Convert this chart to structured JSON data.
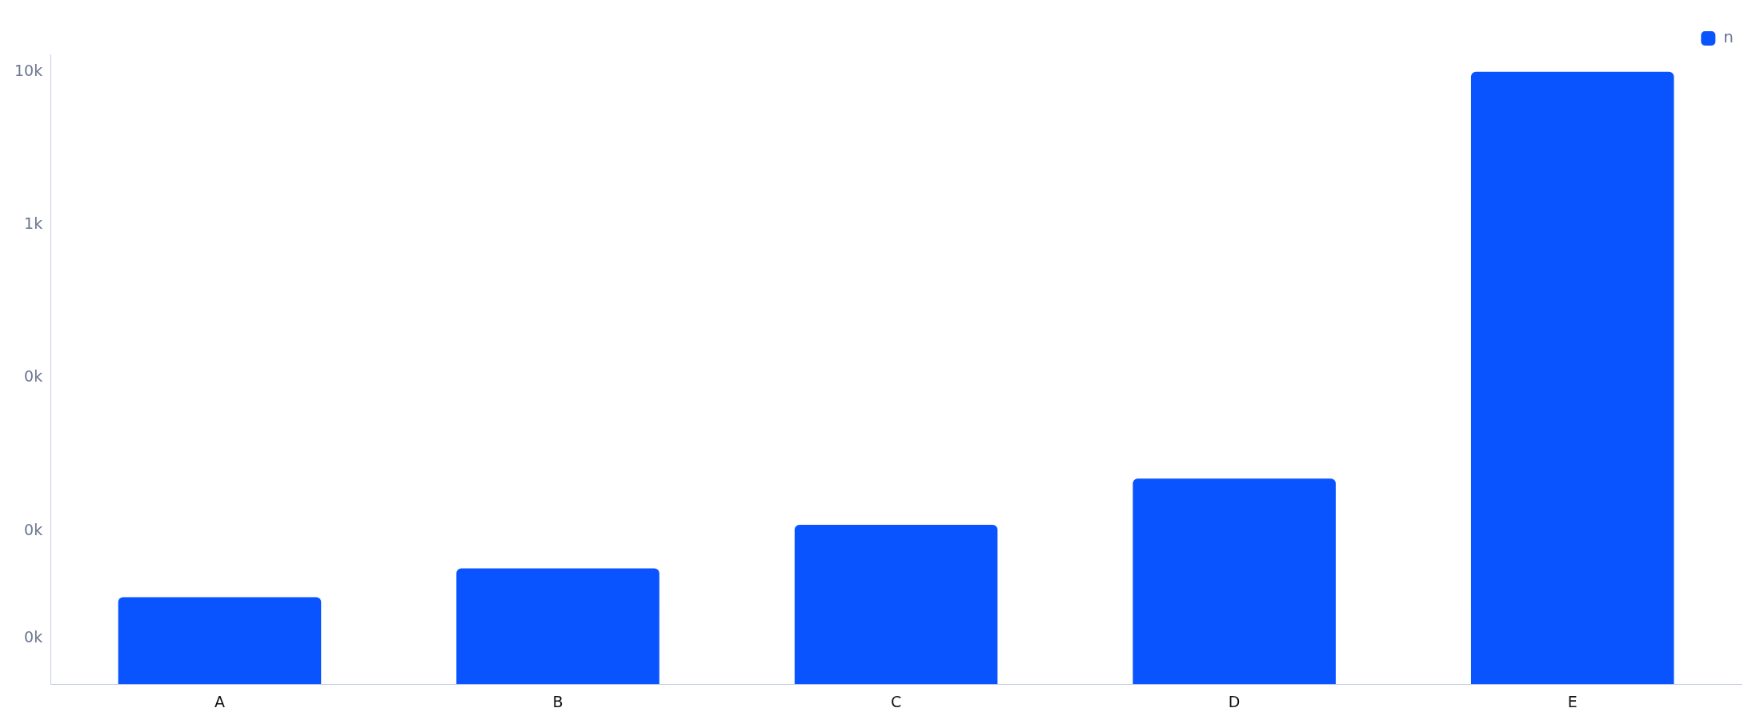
{
  "chart_data": {
    "type": "bar",
    "categories": [
      "A",
      "B",
      "C",
      "D",
      "E"
    ],
    "series": [
      {
        "name": "n",
        "color": "#0a54ff",
        "values": [
          3.7,
          5.7,
          11,
          22,
          10000
        ]
      }
    ],
    "log": "y",
    "ylim": [
      1,
      13000
    ],
    "yticks": [
      {
        "value": 2,
        "label": "0k"
      },
      {
        "value": 10,
        "label": "0k"
      },
      {
        "value": 100,
        "label": "0k"
      },
      {
        "value": 1000,
        "label": "1k"
      },
      {
        "value": 10000,
        "label": "10k"
      }
    ],
    "legend": "top right"
  }
}
